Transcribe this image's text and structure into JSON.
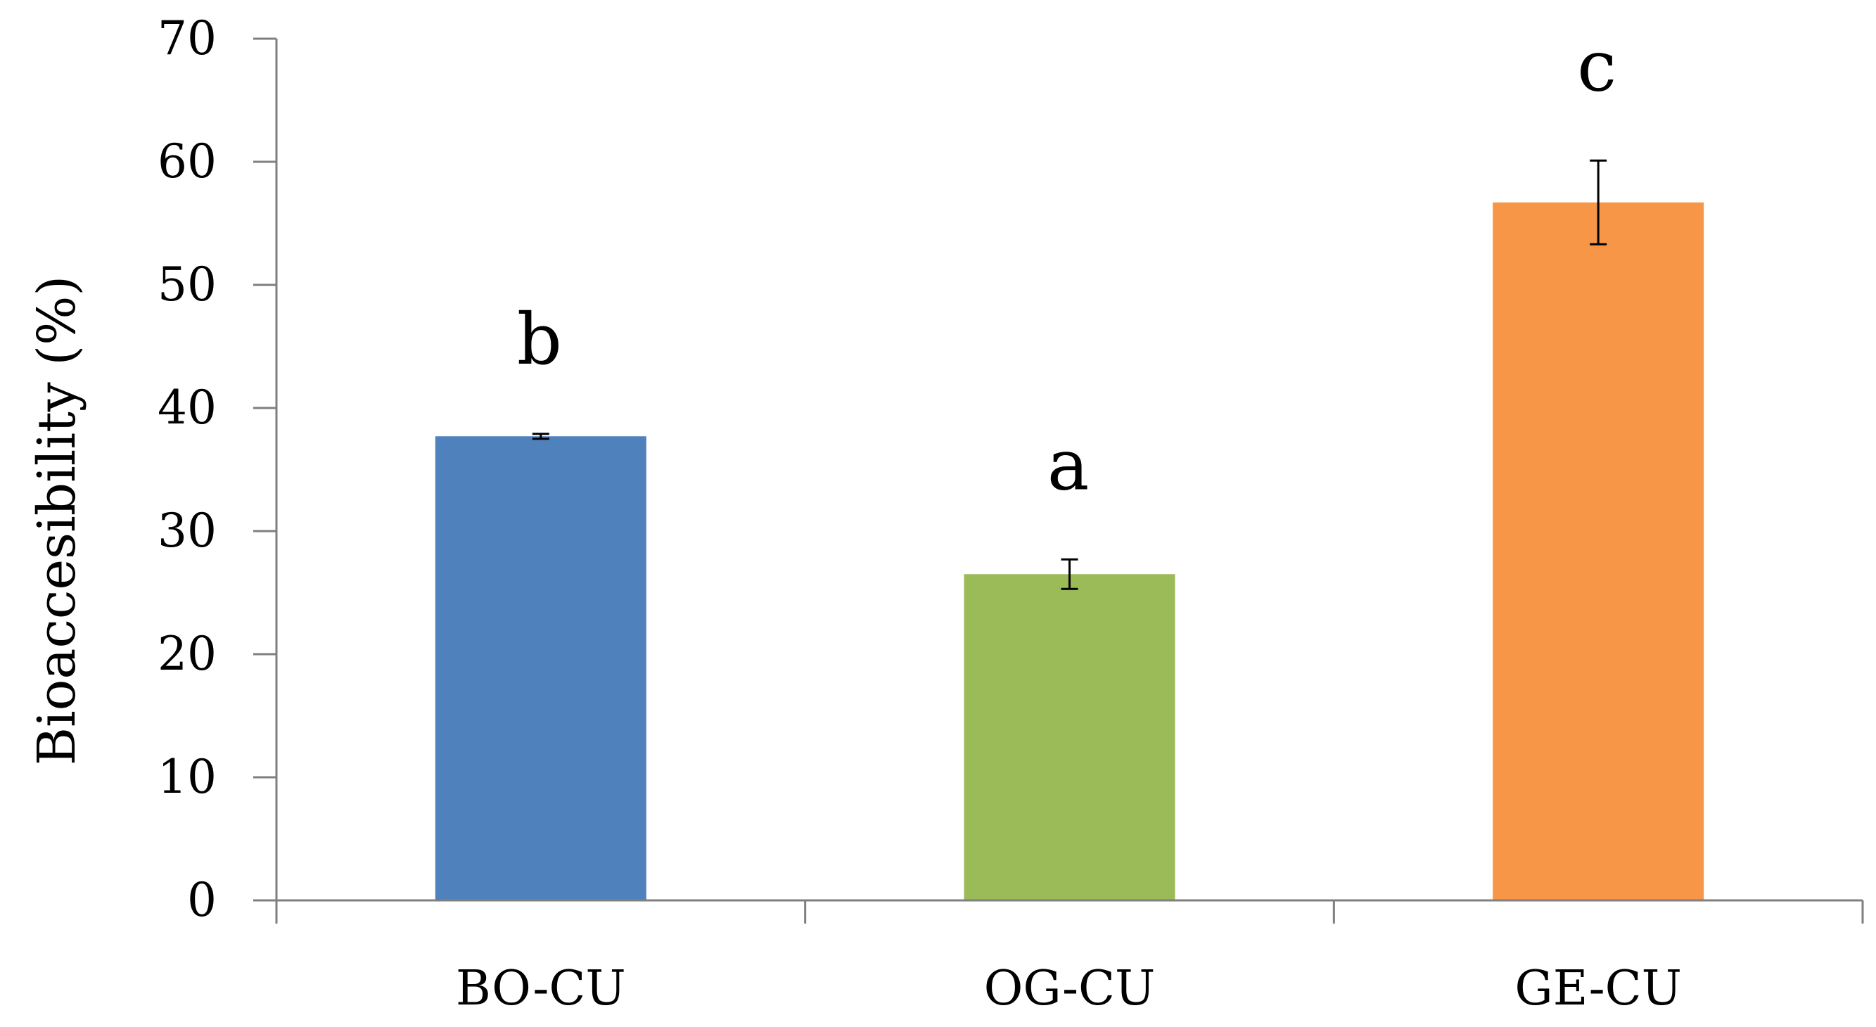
{
  "chart_data": {
    "type": "bar",
    "title": "",
    "xlabel": "",
    "ylabel": "Bioaccesibility (%)",
    "ylim": [
      0,
      70
    ],
    "yticks": [
      0,
      10,
      20,
      30,
      40,
      50,
      60,
      70
    ],
    "grid": false,
    "legend": "none",
    "categories": [
      "BO-CU",
      "OG-CU",
      "GE-CU"
    ],
    "values": [
      37.7,
      26.5,
      56.7
    ],
    "errors": [
      0.2,
      1.2,
      3.4
    ],
    "significance_labels": [
      "b",
      "a",
      "c"
    ],
    "colors": [
      "#4f81bd",
      "#9bbb59",
      "#f79646"
    ]
  }
}
